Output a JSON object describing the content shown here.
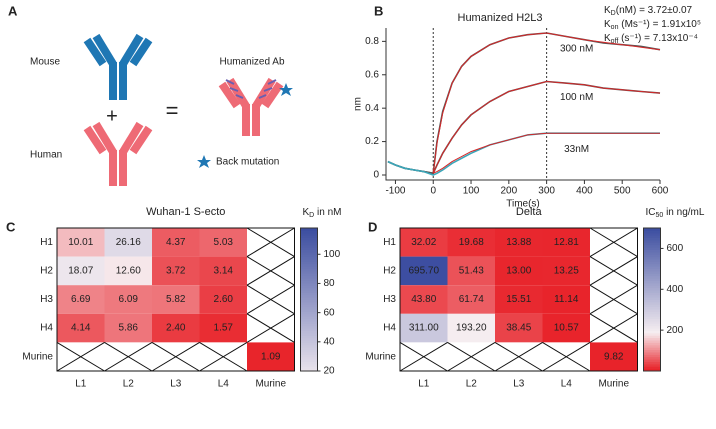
{
  "diagram": {
    "panel": "A",
    "mouse": "Mouse",
    "human": "Human",
    "plus": "+",
    "equals": "=",
    "humanized": "Humanized Ab",
    "back_mutation": "Back mutation"
  },
  "chart_data": [
    {
      "type": "line",
      "panel": "B",
      "title": "Humanized H2L3",
      "xlabel": "Time(s)",
      "ylabel": "nm",
      "kinetics": [
        {
          "main": "K",
          "sub": "D",
          "rest": "(nM) = 3.72±0.07"
        },
        {
          "main": "K",
          "sub": "on",
          "rest": " (Ms⁻¹) = 1.91x10⁵"
        },
        {
          "main": "K",
          "sub": "off",
          "rest": " (s⁻¹) = 7.13x10⁻⁴"
        }
      ],
      "xlim": [
        -125,
        600
      ],
      "xticks": [
        -100,
        0,
        100,
        200,
        300,
        400,
        500,
        600
      ],
      "ylim": [
        -0.03,
        0.88
      ],
      "yticks": [
        0,
        0.2,
        0.4,
        0.6,
        0.8
      ],
      "vlines": [
        0,
        300
      ],
      "x": [
        -120,
        -100,
        -75,
        -50,
        -25,
        0,
        10,
        25,
        50,
        75,
        100,
        150,
        200,
        250,
        300,
        350,
        400,
        450,
        500,
        550,
        600
      ],
      "series": [
        {
          "label": "300 nM",
          "color": "#555555",
          "values": [
            0.08,
            0.06,
            0.04,
            0.03,
            0.02,
            0.01,
            0.2,
            0.38,
            0.55,
            0.65,
            0.71,
            0.78,
            0.82,
            0.84,
            0.85,
            0.83,
            0.81,
            0.79,
            0.78,
            0.77,
            0.75
          ]
        },
        {
          "label": "100 nM",
          "color": "#555555",
          "values": [
            0.08,
            0.06,
            0.04,
            0.03,
            0.02,
            0.01,
            0.06,
            0.13,
            0.22,
            0.3,
            0.36,
            0.44,
            0.5,
            0.53,
            0.56,
            0.55,
            0.54,
            0.52,
            0.51,
            0.5,
            0.49
          ]
        },
        {
          "label": "33nM",
          "color": "#3aa6b9",
          "values": [
            0.08,
            0.06,
            0.04,
            0.03,
            0.02,
            0.0,
            0.01,
            0.03,
            0.07,
            0.1,
            0.13,
            0.18,
            0.21,
            0.24,
            0.25,
            0.25,
            0.25,
            0.25,
            0.25,
            0.25,
            0.25
          ]
        },
        {
          "color": "#d62728",
          "values": [
            null,
            null,
            null,
            null,
            null,
            0.01,
            0.19,
            0.37,
            0.55,
            0.65,
            0.71,
            0.78,
            0.82,
            0.84,
            0.85,
            0.83,
            0.81,
            0.795,
            0.78,
            0.765,
            0.75
          ]
        },
        {
          "color": "#d62728",
          "values": [
            null,
            null,
            null,
            null,
            null,
            0.01,
            0.06,
            0.13,
            0.22,
            0.3,
            0.36,
            0.44,
            0.5,
            0.53,
            0.56,
            0.55,
            0.54,
            0.52,
            0.51,
            0.5,
            0.49
          ]
        },
        {
          "color": "#d62728",
          "values": [
            null,
            null,
            null,
            null,
            null,
            0.01,
            0.02,
            0.04,
            0.08,
            0.11,
            0.14,
            0.18,
            0.21,
            0.24,
            0.25,
            0.25,
            0.25,
            0.25,
            0.25,
            0.25,
            0.25
          ]
        }
      ]
    },
    {
      "type": "heatmap",
      "panel": "C",
      "title": "Wuhan-1 S-ecto",
      "colorbar_label": {
        "main": "K",
        "sub": "D",
        "rest": " in nM"
      },
      "rows": [
        "H1",
        "H2",
        "H3",
        "H4",
        "Murine"
      ],
      "columns": [
        "L1",
        "L2",
        "L3",
        "L4",
        "Murine"
      ],
      "values": [
        [
          10.01,
          26.16,
          4.37,
          5.03,
          null
        ],
        [
          18.07,
          12.6,
          3.72,
          3.14,
          null
        ],
        [
          6.69,
          6.09,
          5.82,
          2.6,
          null
        ],
        [
          4.14,
          5.86,
          2.4,
          1.57,
          null
        ],
        [
          null,
          null,
          null,
          null,
          1.09
        ]
      ],
      "value_labels": [
        [
          "10.01",
          "26.16",
          "4.37",
          "5.03",
          null
        ],
        [
          "18.07",
          "12.60",
          "3.72",
          "3.14",
          null
        ],
        [
          "6.69",
          "6.09",
          "5.82",
          "2.60",
          null
        ],
        [
          "4.14",
          "5.86",
          "2.40",
          "1.57",
          null
        ],
        [
          null,
          null,
          null,
          null,
          "1.09"
        ]
      ],
      "colorscale": [
        [
          1,
          "#e8232a"
        ],
        [
          13,
          "#f6eef1"
        ],
        [
          118,
          "#3b4da0"
        ]
      ],
      "clim": [
        20,
        118
      ],
      "cticks": [
        20,
        40,
        60,
        80,
        100
      ]
    },
    {
      "type": "heatmap",
      "panel": "D",
      "title": "Delta",
      "colorbar_label": {
        "main": "IC",
        "sub": "50",
        "rest": " in ng/mL"
      },
      "rows": [
        "H1",
        "H2",
        "H3",
        "H4",
        "Murine"
      ],
      "columns": [
        "L1",
        "L2",
        "L3",
        "L4",
        "Murine"
      ],
      "values": [
        [
          32.02,
          19.68,
          13.88,
          12.81,
          null
        ],
        [
          695.7,
          51.43,
          13.0,
          13.25,
          null
        ],
        [
          43.8,
          61.74,
          15.51,
          11.14,
          null
        ],
        [
          311.0,
          193.2,
          38.45,
          10.57,
          null
        ],
        [
          null,
          null,
          null,
          null,
          9.82
        ]
      ],
      "value_labels": [
        [
          "32.02",
          "19.68",
          "13.88",
          "12.81",
          null
        ],
        [
          "695.70",
          "51.43",
          "13.00",
          "13.25",
          null
        ],
        [
          "43.80",
          "61.74",
          "15.51",
          "11.14",
          null
        ],
        [
          "311.00",
          "193.20",
          "38.45",
          "10.57",
          null
        ],
        [
          null,
          null,
          null,
          null,
          "9.82"
        ]
      ],
      "colorscale": [
        [
          10,
          "#e8232a"
        ],
        [
          190,
          "#f6eef1"
        ],
        [
          700,
          "#3b4da0"
        ]
      ],
      "clim": [
        0,
        700
      ],
      "cticks": [
        200,
        400,
        600
      ]
    }
  ]
}
